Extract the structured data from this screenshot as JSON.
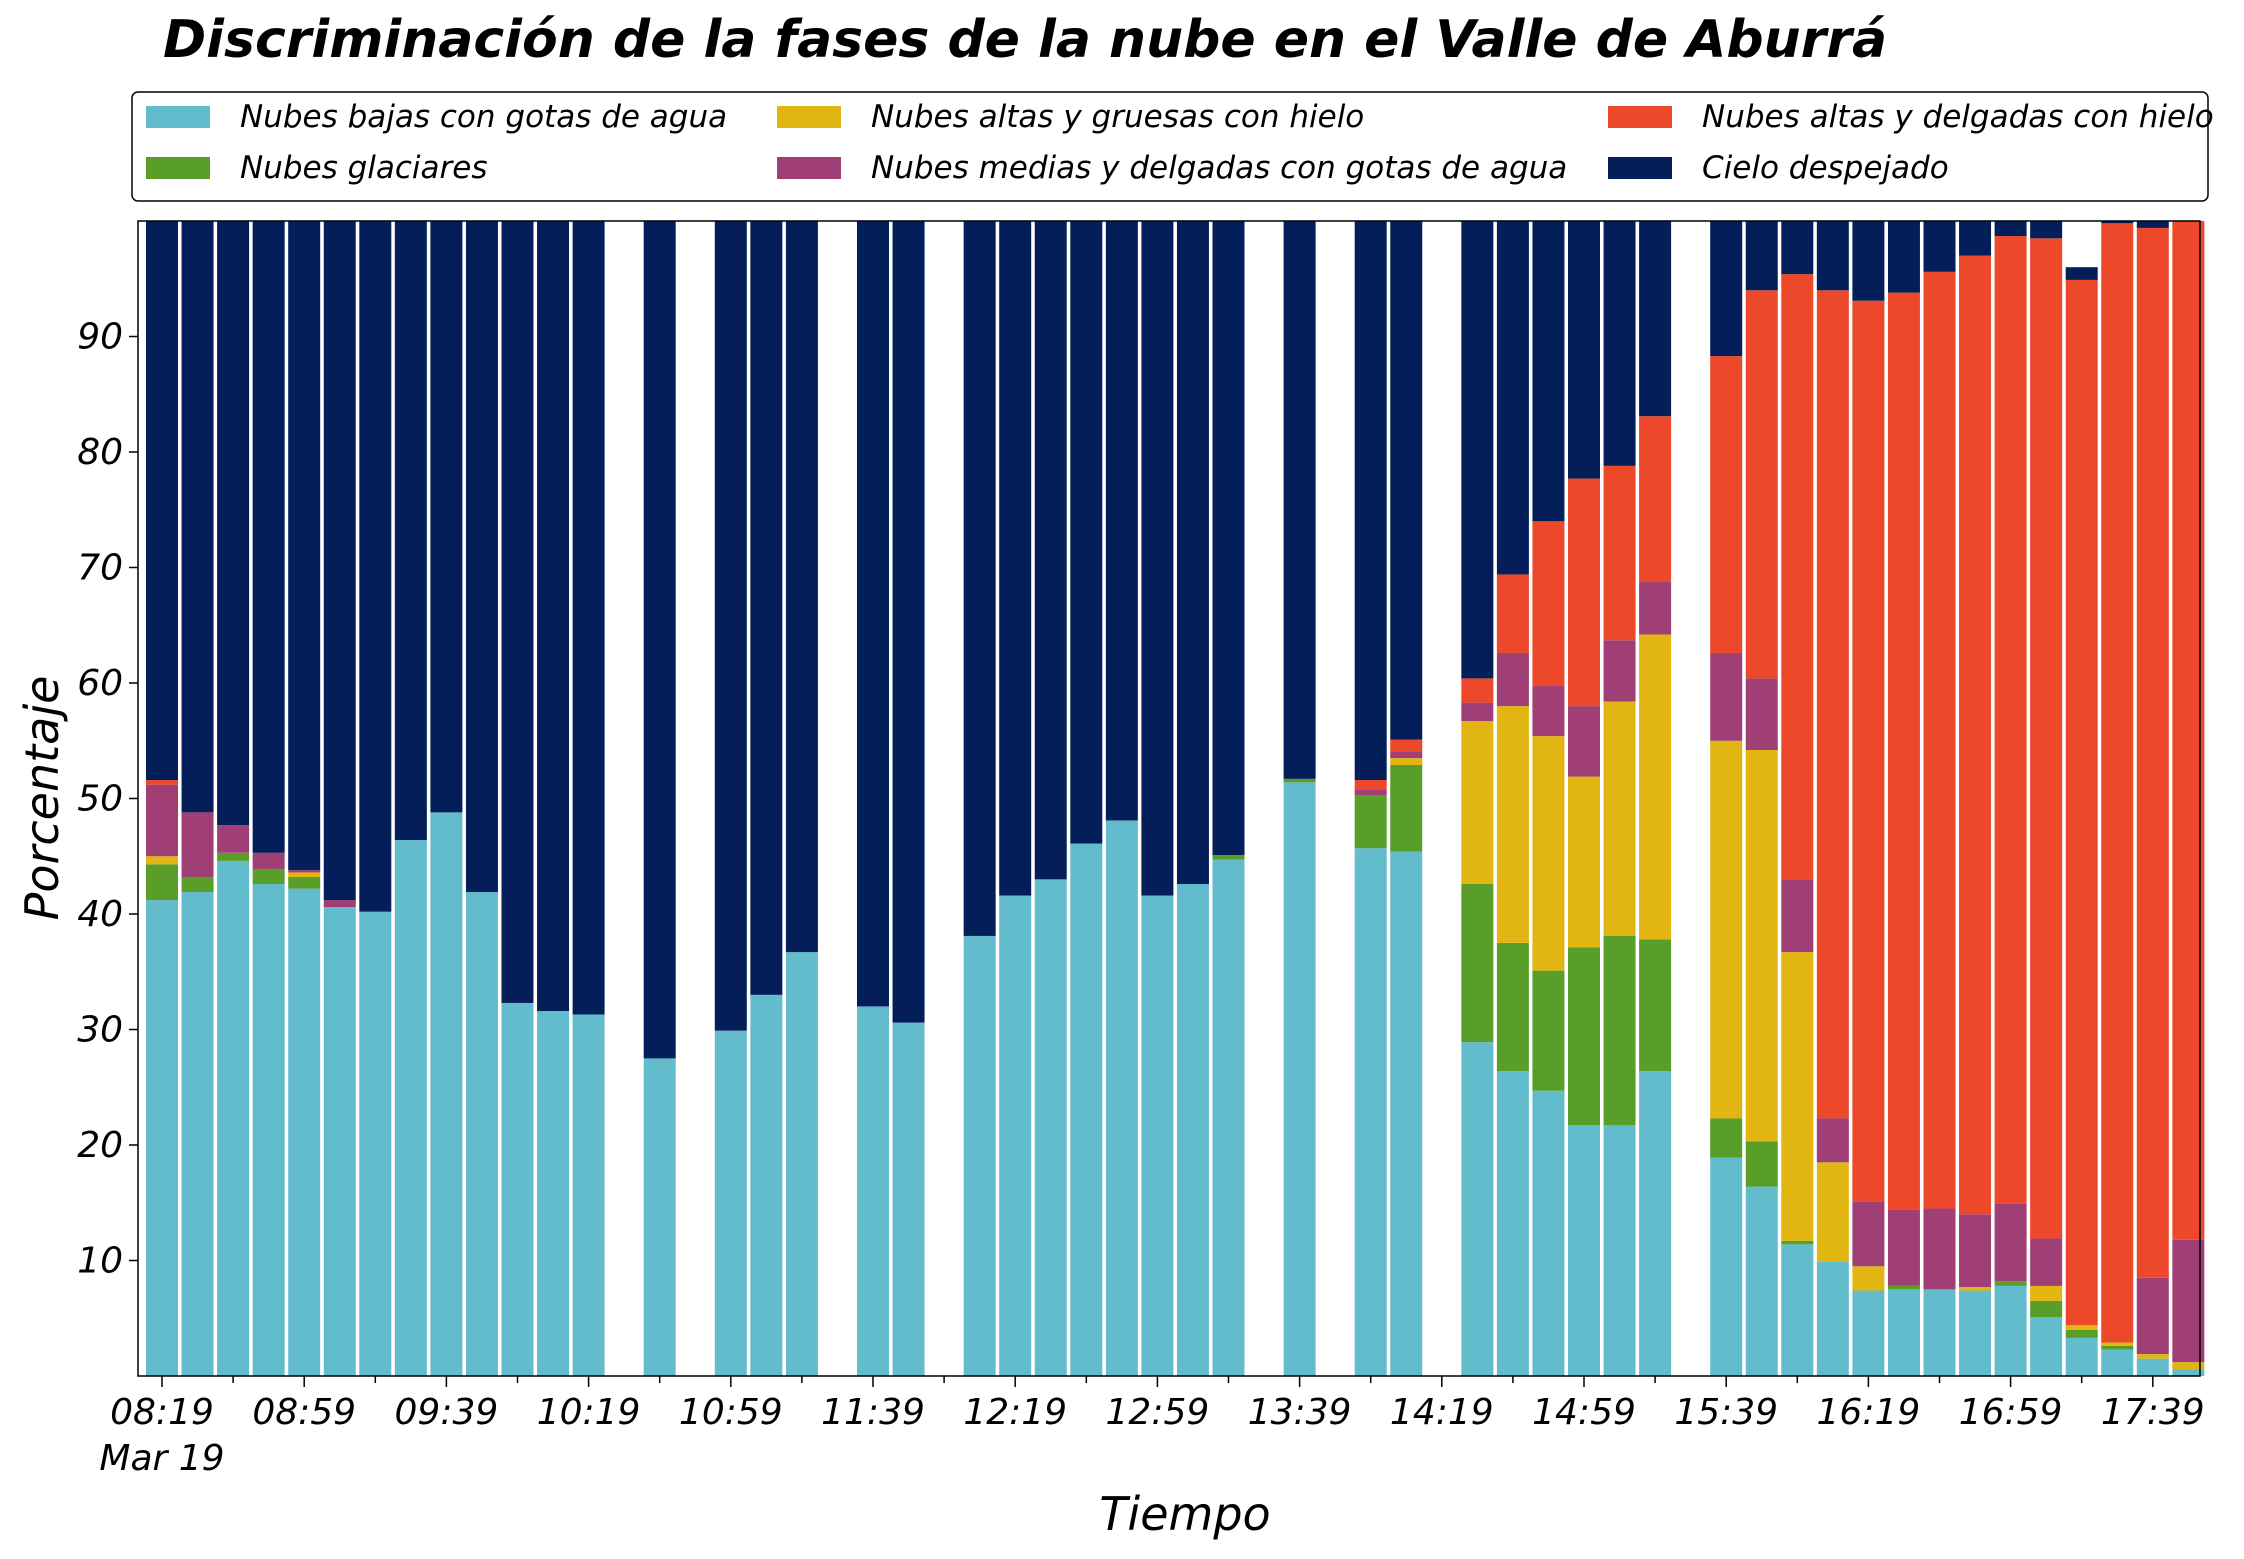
{
  "chart_data": {
    "type": "bar",
    "stacked": true,
    "title": "Discriminación de la fases de la nube en el Valle de Aburrá",
    "xlabel": "Tiempo",
    "ylabel": "Porcentaje",
    "ylim": [
      0,
      100
    ],
    "yticks": [
      10,
      20,
      30,
      40,
      50,
      60,
      70,
      80,
      90
    ],
    "grid": false,
    "legend_position": "top, above plot, 3 columns",
    "x_tick_labels": [
      "08:19",
      "08:59",
      "09:39",
      "10:19",
      "10:59",
      "11:39",
      "12:19",
      "12:59",
      "13:39",
      "14:19",
      "14:59",
      "15:39",
      "16:19",
      "16:59",
      "17:39"
    ],
    "x_date_label": "Mar 19",
    "x_label_every_n_slots": 4,
    "slot_interval_minutes": 10,
    "categories": [
      "08:19",
      "08:29",
      "08:39",
      "08:49",
      "08:59",
      "09:09",
      "09:19",
      "09:29",
      "09:39",
      "09:49",
      "09:59",
      "10:09",
      "10:19",
      "10:29",
      "10:39",
      "10:49",
      "10:59",
      "11:09",
      "11:19",
      "11:29",
      "11:39",
      "11:49",
      "11:59",
      "12:09",
      "12:19",
      "12:29",
      "12:39",
      "12:49",
      "12:59",
      "13:09",
      "13:19",
      "13:29",
      "13:39",
      "13:49",
      "13:59",
      "14:09",
      "14:19",
      "14:29",
      "14:39",
      "14:49",
      "14:59",
      "15:09",
      "15:19",
      "15:29",
      "15:39",
      "15:49",
      "15:59",
      "16:09",
      "16:19",
      "16:29",
      "16:39",
      "16:49",
      "16:59",
      "17:09",
      "17:19",
      "17:29",
      "17:39",
      "17:49",
      "17:59"
    ],
    "series": [
      {
        "name": "Nubes bajas con gotas de agua",
        "color": "#63bccb",
        "values": [
          41.2,
          41.9,
          44.6,
          42.6,
          42.2,
          40.6,
          40.2,
          46.4,
          48.8,
          41.9,
          32.3,
          31.6,
          31.3,
          null,
          27.5,
          null,
          29.9,
          33.0,
          36.7,
          null,
          32.0,
          30.6,
          null,
          38.1,
          41.6,
          43.0,
          46.1,
          48.1,
          41.6,
          42.6,
          44.7,
          null,
          51.4,
          null,
          45.7,
          45.4,
          null,
          28.9,
          26.4,
          24.7,
          21.7,
          21.7,
          26.4,
          null,
          18.9,
          16.4,
          11.4,
          9.9,
          7.4,
          7.5,
          7.5,
          7.4,
          7.8,
          5.1,
          3.3,
          2.3,
          1.5,
          0.6,
          null
        ]
      },
      {
        "name": "Nubes glaciares",
        "color": "#5a9e2a",
        "values": [
          3.1,
          1.3,
          0.7,
          1.3,
          1.0,
          0,
          0,
          0,
          0,
          0,
          0,
          0,
          0,
          null,
          0,
          null,
          0,
          0,
          0,
          null,
          0,
          0,
          null,
          0,
          0,
          0,
          0,
          0,
          0,
          0,
          0.4,
          null,
          0.3,
          null,
          4.6,
          7.5,
          null,
          13.7,
          11.1,
          10.4,
          15.4,
          16.4,
          11.4,
          null,
          3.4,
          3.9,
          0.3,
          0,
          0,
          0.3,
          0,
          0,
          0.4,
          1.4,
          0.7,
          0.3,
          0,
          0,
          null
        ]
      },
      {
        "name": "Nubes altas y gruesas con hielo",
        "color": "#e2b612",
        "values": [
          0.7,
          0,
          0,
          0,
          0.4,
          0,
          0,
          0,
          0,
          0,
          0,
          0,
          0,
          null,
          0,
          null,
          0,
          0,
          0,
          null,
          0,
          0,
          null,
          0,
          0,
          0,
          0,
          0,
          0,
          0,
          0,
          null,
          0,
          null,
          0,
          0.6,
          null,
          14.1,
          20.5,
          20.3,
          14.8,
          20.3,
          26.4,
          null,
          32.7,
          33.9,
          25.0,
          8.6,
          2.1,
          0,
          0,
          0.3,
          0,
          1.3,
          0.4,
          0.3,
          0.4,
          0.6,
          null
        ]
      },
      {
        "name": "Nubes medias y delgadas con gotas de agua",
        "color": "#a03e76",
        "values": [
          6.2,
          5.6,
          2.4,
          1.4,
          0.2,
          0.6,
          0,
          0,
          0,
          0,
          0,
          0,
          0,
          null,
          0,
          null,
          0,
          0,
          0,
          null,
          0,
          0,
          null,
          0,
          0,
          0,
          0,
          0,
          0,
          0,
          0,
          null,
          0,
          null,
          0.5,
          0.6,
          null,
          1.6,
          4.6,
          4.4,
          6.1,
          5.3,
          4.6,
          null,
          7.6,
          6.2,
          6.3,
          3.8,
          5.6,
          6.6,
          7.0,
          6.3,
          6.7,
          4.1,
          0,
          0,
          6.6,
          10.6,
          null
        ]
      },
      {
        "name": "Nubes altas y delgadas con hielo",
        "color": "#ec4829",
        "values": [
          0.4,
          0,
          0,
          0,
          0,
          0,
          0,
          0,
          0,
          0,
          0,
          0,
          0,
          null,
          0,
          null,
          0,
          0,
          0,
          null,
          0,
          0,
          null,
          0,
          0,
          0,
          0,
          0,
          0,
          0,
          0,
          null,
          0,
          null,
          0.8,
          1.0,
          null,
          2.1,
          6.8,
          14.2,
          19.7,
          15.1,
          14.3,
          null,
          25.7,
          33.6,
          52.4,
          71.7,
          78.0,
          79.4,
          81.1,
          83.0,
          83.8,
          86.6,
          90.5,
          96.9,
          90.9,
          88.2,
          null
        ]
      },
      {
        "name": "Cielo despejado",
        "color": "#041e5a",
        "values": [
          48.4,
          51.2,
          52.3,
          54.7,
          56.2,
          58.8,
          59.8,
          53.6,
          51.2,
          58.1,
          67.7,
          68.4,
          68.7,
          null,
          72.5,
          null,
          70.1,
          67.0,
          63.3,
          null,
          68.0,
          69.4,
          null,
          61.9,
          58.4,
          57.0,
          53.9,
          51.9,
          58.4,
          57.4,
          54.9,
          null,
          48.3,
          null,
          48.4,
          44.9,
          null,
          39.6,
          30.6,
          26.0,
          22.3,
          21.2,
          16.9,
          null,
          11.7,
          6.0,
          4.6,
          6.0,
          6.9,
          6.2,
          4.4,
          3.0,
          1.3,
          1.5,
          1.1,
          0.2,
          0.6,
          0,
          null
        ]
      }
    ]
  }
}
